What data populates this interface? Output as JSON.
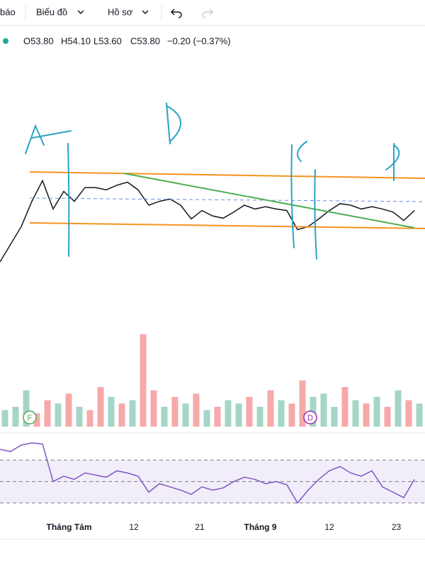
{
  "toolbar": {
    "items": [
      "báo",
      "Biểu đồ",
      "Hồ sơ"
    ]
  },
  "legend": {
    "open": "O53.80",
    "high": "H54.10",
    "low": "L53.60",
    "close": "C53.80",
    "change": "−0.20 (−0.37%)"
  },
  "markers": {
    "dividend_f": "F",
    "dividend_d": "D"
  },
  "chart_data": [
    {
      "type": "line",
      "color": "#131722",
      "xlim": [
        0,
        40
      ],
      "ylim": [
        52.6,
        55.0
      ],
      "x": [
        0,
        1,
        2,
        3,
        4,
        5,
        6,
        7,
        8,
        9,
        10,
        11,
        12,
        13,
        14,
        15,
        16,
        17,
        18,
        19,
        20,
        21,
        22,
        23,
        24,
        25,
        26,
        27,
        28,
        29,
        30,
        31,
        32,
        33,
        34,
        35,
        36,
        37,
        38,
        39
      ],
      "values": [
        53.06,
        53.29,
        53.52,
        53.85,
        54.12,
        53.75,
        53.98,
        53.85,
        54.03,
        54.03,
        54.0,
        54.06,
        54.1,
        54.0,
        53.8,
        53.85,
        53.88,
        53.8,
        53.62,
        53.73,
        53.66,
        53.63,
        53.71,
        53.8,
        53.75,
        53.78,
        53.75,
        53.73,
        53.48,
        53.52,
        53.62,
        53.73,
        53.82,
        53.8,
        53.75,
        53.78,
        53.75,
        53.71,
        53.6,
        53.73
      ]
    },
    {
      "type": "bar",
      "xlim": [
        0,
        40
      ],
      "ylim": [
        0,
        150
      ],
      "x": [
        0,
        1,
        2,
        3,
        4,
        5,
        6,
        7,
        8,
        9,
        10,
        11,
        12,
        13,
        14,
        15,
        16,
        17,
        18,
        19,
        20,
        21,
        22,
        23,
        24,
        25,
        26,
        27,
        28,
        29,
        30,
        31,
        32,
        33,
        34,
        35,
        36,
        37,
        38,
        39
      ],
      "values": [
        25,
        30,
        55,
        20,
        40,
        35,
        50,
        30,
        25,
        60,
        45,
        35,
        40,
        140,
        55,
        30,
        45,
        35,
        50,
        25,
        30,
        40,
        35,
        45,
        30,
        55,
        40,
        35,
        70,
        45,
        50,
        30,
        60,
        40,
        35,
        45,
        30,
        55,
        40,
        35
      ],
      "colors": [
        "#a5d6c5",
        "#a5d6c5",
        "#a5d6c5",
        "#f7a9a9",
        "#f7a9a9",
        "#a5d6c5",
        "#f7a9a9",
        "#a5d6c5",
        "#f7a9a9",
        "#f7a9a9",
        "#a5d6c5",
        "#f7a9a9",
        "#a5d6c5",
        "#f7a9a9",
        "#f7a9a9",
        "#a5d6c5",
        "#f7a9a9",
        "#a5d6c5",
        "#f7a9a9",
        "#a5d6c5",
        "#f7a9a9",
        "#a5d6c5",
        "#a5d6c5",
        "#f7a9a9",
        "#a5d6c5",
        "#f7a9a9",
        "#a5d6c5",
        "#f7a9a9",
        "#f7a9a9",
        "#a5d6c5",
        "#a5d6c5",
        "#a5d6c5",
        "#f7a9a9",
        "#a5d6c5",
        "#f7a9a9",
        "#a5d6c5",
        "#f7a9a9",
        "#a5d6c5",
        "#f7a9a9",
        "#a5d6c5"
      ]
    },
    {
      "type": "line",
      "color": "#7e57c2",
      "xlim": [
        0,
        40
      ],
      "ylim": [
        24,
        90
      ],
      "band": [
        30,
        70
      ],
      "midline": 50,
      "x": [
        0,
        1,
        2,
        3,
        4,
        5,
        6,
        7,
        8,
        9,
        10,
        11,
        12,
        13,
        14,
        15,
        16,
        17,
        18,
        19,
        20,
        21,
        22,
        23,
        24,
        25,
        26,
        27,
        28,
        29,
        30,
        31,
        32,
        33,
        34,
        35,
        36,
        37,
        38,
        39
      ],
      "values": [
        80,
        78,
        84,
        86,
        85,
        50,
        55,
        52,
        58,
        56,
        54,
        60,
        58,
        55,
        40,
        48,
        45,
        42,
        38,
        45,
        42,
        44,
        50,
        54,
        52,
        48,
        50,
        47,
        30,
        42,
        52,
        60,
        64,
        58,
        55,
        60,
        45,
        40,
        35,
        52
      ],
      "xticks": [
        {
          "value": 6.5,
          "label": "Tháng Tám"
        },
        {
          "value": 12.6,
          "label": "12"
        },
        {
          "value": 18.8,
          "label": "21"
        },
        {
          "value": 24.5,
          "label": "Tháng 9"
        },
        {
          "value": 31,
          "label": "12"
        },
        {
          "value": 37.3,
          "label": "23"
        }
      ]
    }
  ]
}
